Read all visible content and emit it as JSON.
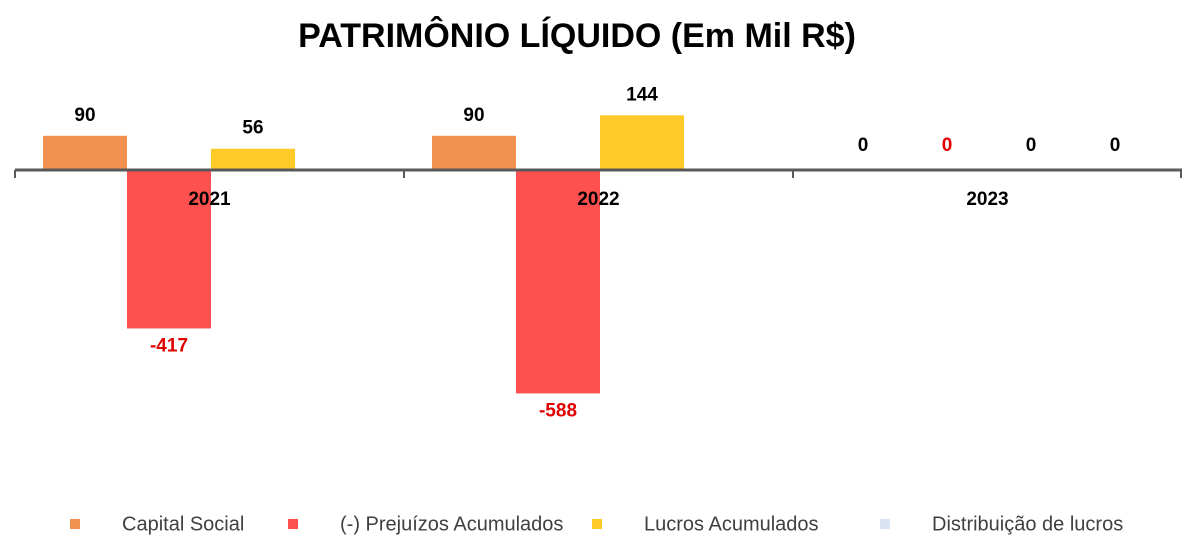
{
  "chart_data": {
    "type": "bar",
    "title": "PATRIMÔNIO LÍQUIDO (Em Mil R$)",
    "categories": [
      "2021",
      "2022",
      "2023"
    ],
    "series": [
      {
        "name": "Capital Social",
        "color": "#F0914F",
        "label_color": "#000000",
        "values": [
          90,
          90,
          0
        ]
      },
      {
        "name": "(-) Prejuízos Acumulados",
        "color": "#FF5050",
        "label_color": "#E00000",
        "values": [
          -417,
          -588,
          0
        ]
      },
      {
        "name": "Lucros Acumulados",
        "color": "#FFCA28",
        "label_color": "#000000",
        "values": [
          56,
          144,
          0
        ]
      },
      {
        "name": "Distribuição de lucros",
        "color": "#DAE3F3",
        "label_color": "#000000",
        "values": [
          null,
          null,
          0
        ]
      }
    ],
    "ylim": [
      -700,
      250
    ],
    "legend": "bottom"
  }
}
